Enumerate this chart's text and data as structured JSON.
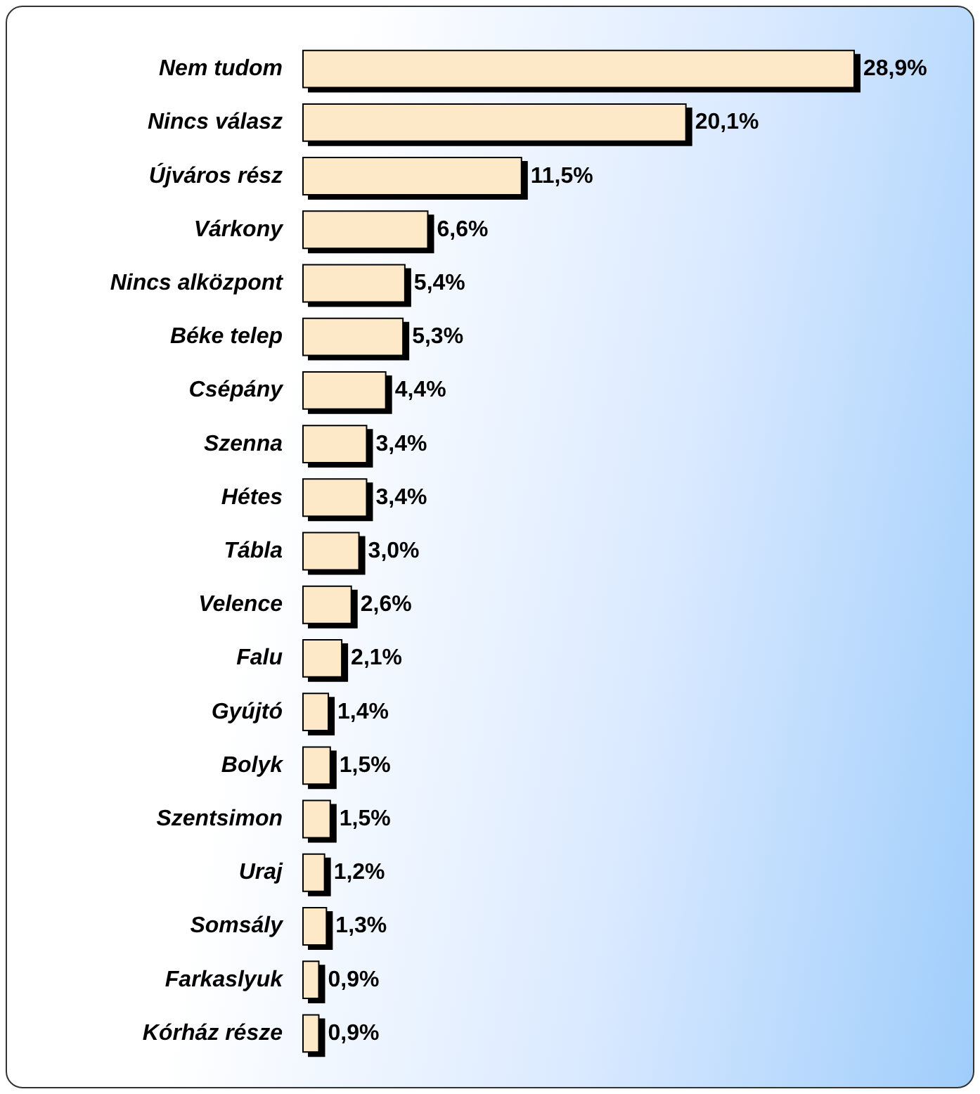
{
  "chart_data": {
    "type": "bar",
    "orientation": "horizontal",
    "color": "#fde9c8",
    "categories": [
      "Nem tudom",
      "Nincs válasz",
      "Újváros rész",
      "Várkony",
      "Nincs alközpont",
      "Béke telep",
      "Csépány",
      "Szenna",
      "Hétes",
      "Tábla",
      "Velence",
      "Falu",
      "Gyújtó",
      "Bolyk",
      "Szentsimon",
      "Uraj",
      "Somsály",
      "Farkaslyuk",
      "Kórház része"
    ],
    "values": [
      28.9,
      20.1,
      11.5,
      6.6,
      5.4,
      5.3,
      4.4,
      3.4,
      3.4,
      3.0,
      2.6,
      2.1,
      1.4,
      1.5,
      1.5,
      1.2,
      1.3,
      0.9,
      0.9
    ],
    "value_labels": [
      "28,9%",
      "20,1%",
      "11,5%",
      "6,6%",
      "5,4%",
      "5,3%",
      "4,4%",
      "3,4%",
      "3,4%",
      "3,0%",
      "2,6%",
      "2,1%",
      "1,4%",
      "1,5%",
      "1,5%",
      "1,2%",
      "1,3%",
      "0,9%",
      "0,9%"
    ]
  }
}
